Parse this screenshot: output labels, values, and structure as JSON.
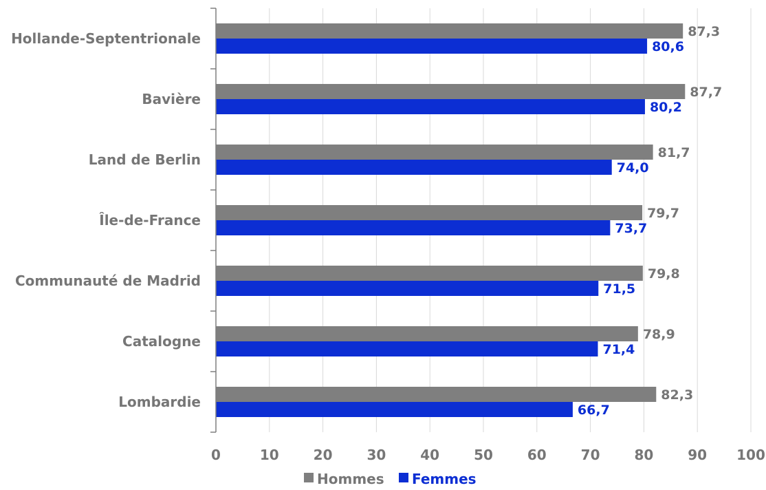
{
  "chart_data": {
    "type": "bar",
    "orientation": "horizontal",
    "categories": [
      "Hollande-Septentrionale",
      "Bavière",
      "Land de Berlin",
      "Île-de-France",
      "Communauté de Madrid",
      "Catalogne",
      "Lombardie"
    ],
    "series": [
      {
        "name": "Hommes",
        "values": [
          87.3,
          87.7,
          81.7,
          79.7,
          79.8,
          78.9,
          82.3
        ],
        "labels": [
          "87,3",
          "87,7",
          "81,7",
          "79,7",
          "79,8",
          "78,9",
          "82,3"
        ],
        "color": "#7f7f7f",
        "label_color": "#767676"
      },
      {
        "name": "Femmes",
        "values": [
          80.6,
          80.2,
          74.0,
          73.7,
          71.5,
          71.4,
          66.7
        ],
        "labels": [
          "80,6",
          "80,2",
          "74,0",
          "73,7",
          "71,5",
          "71,4",
          "66,7"
        ],
        "color": "#0c2ed3",
        "label_color": "#0c2ed3"
      }
    ],
    "xticks": [
      0,
      10,
      20,
      30,
      40,
      50,
      60,
      70,
      80,
      90,
      100
    ],
    "xlim": [
      0,
      100
    ],
    "grid": "vertical",
    "legend_position": "bottom"
  }
}
